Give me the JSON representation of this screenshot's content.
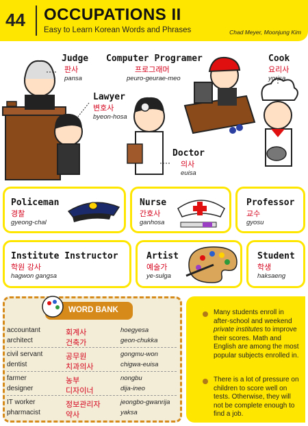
{
  "header": {
    "number": "44",
    "title": "OCCUPATIONS II",
    "subtitle": "Easy to Learn Korean Words and Phrases",
    "authors": "Chad Meyer,  Moonjung Kim"
  },
  "top": {
    "judge": {
      "en": "Judge",
      "ko": "판사",
      "rom": "pansa"
    },
    "programmer": {
      "en": "Computer Programer",
      "ko": "프로그래머",
      "rom": "peuro-geurae-meo"
    },
    "cook": {
      "en": "Cook",
      "ko": "요리사",
      "rom": "yorisa"
    },
    "lawyer": {
      "en": "Lawyer",
      "ko": "변호사",
      "rom": "byeon-hosa"
    },
    "doctor": {
      "en": "Doctor",
      "ko": "의사",
      "rom": "euisa"
    }
  },
  "boxes": {
    "policeman": {
      "en": "Policeman",
      "ko": "경찰",
      "rom": "gyeong-chal"
    },
    "nurse": {
      "en": "Nurse",
      "ko": "간호사",
      "rom": "ganhosa"
    },
    "professor": {
      "en": "Professor",
      "ko": "교수",
      "rom": "gyosu"
    },
    "instructor": {
      "en": "Institute Instructor",
      "ko": "학원 강사",
      "rom": "hagwon gangsa"
    },
    "artist": {
      "en": "Artist",
      "ko": "예술가",
      "rom": "ye-sulga"
    },
    "student": {
      "en": "Student",
      "ko": "학생",
      "rom": "haksaeng"
    }
  },
  "word_bank": {
    "title": "WORD BANK",
    "rows": [
      {
        "en": "accountant",
        "ko": "회계사",
        "rom": "hoegyesa"
      },
      {
        "en": "architect",
        "ko": "건축가",
        "rom": "geon-chukka"
      },
      {
        "en": "civil servant",
        "ko": "공무원",
        "rom": "gongmu-won"
      },
      {
        "en": "dentist",
        "ko": "치과의사",
        "rom": "chigwa-euisa"
      },
      {
        "en": "farmer",
        "ko": "농부",
        "rom": "nongbu"
      },
      {
        "en": "designer",
        "ko": "디자이너",
        "rom": "dija-ineo"
      },
      {
        "en": "IT worker",
        "ko": "정보관리자",
        "rom": "jeongbo-gwanrija"
      },
      {
        "en": "pharmacist",
        "ko": "약사",
        "rom": "yaksa"
      }
    ]
  },
  "notes": {
    "n1_a": "Many students enroll in after-school and weekend ",
    "n1_em": "private institutes",
    "n1_b": " to improve their scores. Math and English are among the most popular subjects enrolled in.",
    "n2": "There is a lot of pressure on children to score well on tests.  Otherwise, they will not be complete enough to find a job."
  },
  "colors": {
    "accent": "#ffe600",
    "korean": "#d4001a",
    "wordbank": "#d68a1a"
  }
}
